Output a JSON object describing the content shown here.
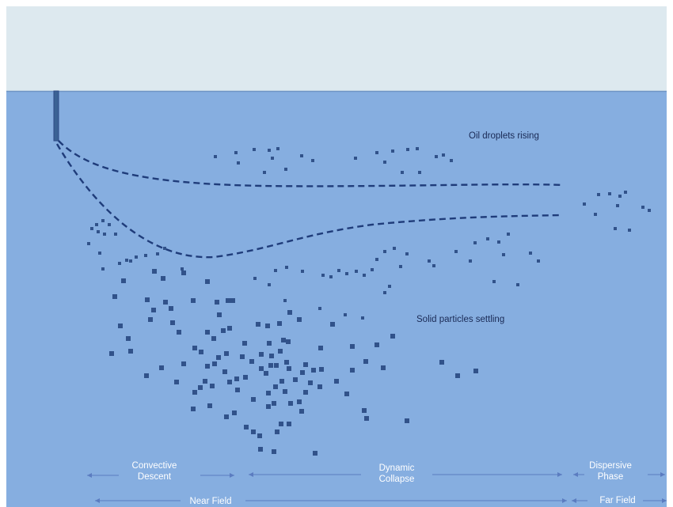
{
  "labels": {
    "oil": "Oil droplets rising",
    "solid": "Solid particles settling",
    "convective_line1": "Convective",
    "convective_line2": "Descent",
    "dynamic_line1": "Dynamic",
    "dynamic_line2": "Collapse",
    "dispersive_line1": "Dispersive",
    "dispersive_line2": "Phase",
    "near_field": "Near Field",
    "far_field": "Far Field"
  },
  "colors": {
    "sky": "#dde9ef",
    "water": "#86aee0",
    "surface_line": "#6f94c4",
    "particle": "#31528a",
    "outline": "#2d4a86",
    "arrow": "#5b7cc0",
    "text": "#1a2a55"
  }
}
